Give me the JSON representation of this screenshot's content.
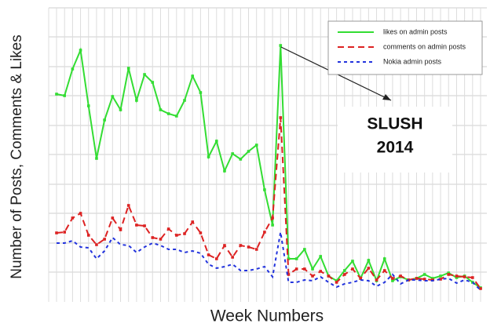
{
  "chart_data": {
    "type": "line",
    "xlabel": "Week Numbers",
    "ylabel": "Number of Posts, Comments & Likes",
    "categories": [
      null,
      null,
      null,
      null,
      null,
      null,
      null,
      null,
      null,
      null,
      null,
      null,
      null,
      null,
      null,
      null,
      null,
      null,
      null,
      null,
      null,
      null,
      null,
      null,
      null,
      null,
      null,
      null,
      null,
      null,
      null,
      null,
      null,
      null,
      null,
      null,
      null,
      null,
      null,
      null,
      null,
      null,
      null,
      null,
      null,
      null,
      null,
      null,
      null,
      null,
      null,
      null,
      null,
      null
    ],
    "series": [
      {
        "name": "likes on admin posts",
        "color": "#33dd33",
        "dash": "none",
        "values": [
          265,
          263,
          297,
          321,
          250,
          183,
          232,
          262,
          245,
          298,
          257,
          290,
          280,
          245,
          240,
          237,
          257,
          288,
          267,
          185,
          205,
          167,
          189,
          182,
          192,
          200,
          143,
          98,
          327,
          55,
          55,
          67,
          42,
          58,
          33,
          27,
          40,
          52,
          30,
          53,
          27,
          55,
          27,
          32,
          28,
          30,
          35,
          30,
          33,
          37,
          31,
          33,
          25,
          18
        ]
      },
      {
        "name": "comments on admin posts",
        "color": "#dd2222",
        "dash": "8 5",
        "values": [
          88,
          89,
          107,
          113,
          85,
          73,
          80,
          107,
          92,
          123,
          98,
          97,
          82,
          80,
          93,
          85,
          87,
          102,
          88,
          60,
          55,
          72,
          57,
          72,
          70,
          67,
          89,
          107,
          235,
          35,
          42,
          42,
          33,
          39,
          33,
          25,
          35,
          42,
          30,
          43,
          28,
          40,
          30,
          33,
          28,
          30,
          29,
          28,
          29,
          35,
          33,
          32,
          31,
          17
        ]
      },
      {
        "name": "Nokia admin posts",
        "color": "#2233dd",
        "dash": "4 4",
        "values": [
          75,
          75,
          78,
          70,
          69,
          55,
          65,
          82,
          73,
          72,
          63,
          70,
          75,
          72,
          67,
          67,
          63,
          65,
          62,
          48,
          43,
          45,
          48,
          40,
          40,
          42,
          45,
          32,
          89,
          25,
          25,
          28,
          27,
          32,
          25,
          19,
          23,
          25,
          28,
          27,
          20,
          25,
          35,
          23,
          28,
          28,
          27,
          27,
          29,
          30,
          24,
          28,
          25,
          15
        ]
      }
    ],
    "ylim": [
      0,
      375
    ],
    "yticks": [
      38,
      75,
      113,
      150,
      188,
      225,
      263,
      300,
      338,
      375
    ],
    "grid": true,
    "legend": "upper right",
    "annotation": {
      "line1": "SLUSH",
      "line2": "2014"
    }
  }
}
